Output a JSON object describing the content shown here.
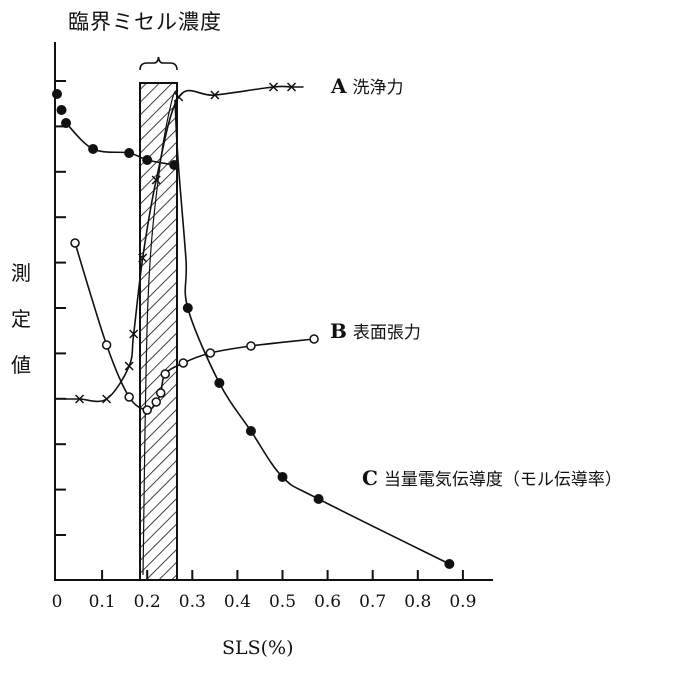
{
  "chart_data": {
    "type": "line",
    "title": "臨界ミセル濃度",
    "xlabel": "SLS(%)",
    "ylabel": "測定値",
    "xlim": [
      0,
      0.95
    ],
    "x_ticks": [
      "0",
      "0.1",
      "0.2",
      "0.3",
      "0.4",
      "0.5",
      "0.6",
      "0.7",
      "0.8",
      "0.9"
    ],
    "y_ticks_count": 11,
    "y_tick_labels": [],
    "grid": false,
    "legend": "inline labels at right of each curve",
    "cmc_region": {
      "x_start": 0.185,
      "x_end": 0.265,
      "pattern": "diagonal hatch",
      "label": "臨界ミセル濃度"
    },
    "series": [
      {
        "id": "A",
        "letter": "A",
        "name": "洗浄力",
        "marker": "x",
        "points": [
          [
            0.05,
            399
          ],
          [
            0.11,
            399
          ],
          [
            0.16,
            366
          ],
          [
            0.17,
            334
          ],
          [
            0.19,
            258
          ],
          [
            0.22,
            180
          ],
          [
            0.27,
            97
          ],
          [
            0.35,
            95
          ],
          [
            0.48,
            87
          ],
          [
            0.52,
            87
          ]
        ]
      },
      {
        "id": "B",
        "letter": "B",
        "name": "表面張力",
        "marker": "open-circle",
        "points": [
          [
            0.04,
            243
          ],
          [
            0.11,
            345
          ],
          [
            0.16,
            397
          ],
          [
            0.2,
            410
          ],
          [
            0.22,
            402
          ],
          [
            0.23,
            393
          ],
          [
            0.24,
            374
          ],
          [
            0.28,
            363
          ],
          [
            0.34,
            353
          ],
          [
            0.43,
            346
          ],
          [
            0.57,
            339
          ]
        ]
      },
      {
        "id": "C",
        "letter": "C",
        "name": "当量電気伝導度（モル伝導率）",
        "marker": "filled-circle",
        "points": [
          [
            0.0,
            94
          ],
          [
            0.01,
            110
          ],
          [
            0.02,
            123
          ],
          [
            0.08,
            149
          ],
          [
            0.16,
            153
          ],
          [
            0.2,
            160
          ],
          [
            0.26,
            165
          ],
          [
            0.29,
            308
          ],
          [
            0.36,
            383
          ],
          [
            0.43,
            431
          ],
          [
            0.5,
            477
          ],
          [
            0.58,
            499
          ],
          [
            0.87,
            564
          ]
        ]
      }
    ],
    "note": "Y values are pixel positions on an unlabeled y-axis (higher pixel = lower measured value)."
  },
  "labels": {
    "title": "臨界ミセル濃度",
    "ylabel": "測\n定\n値",
    "xlabel": "SLS(%)",
    "A_letter": "A",
    "A_name": "洗浄力",
    "B_letter": "B",
    "B_name": "表面張力",
    "C_letter": "C",
    "C_name": "当量電気伝導度（モル伝導率）"
  }
}
